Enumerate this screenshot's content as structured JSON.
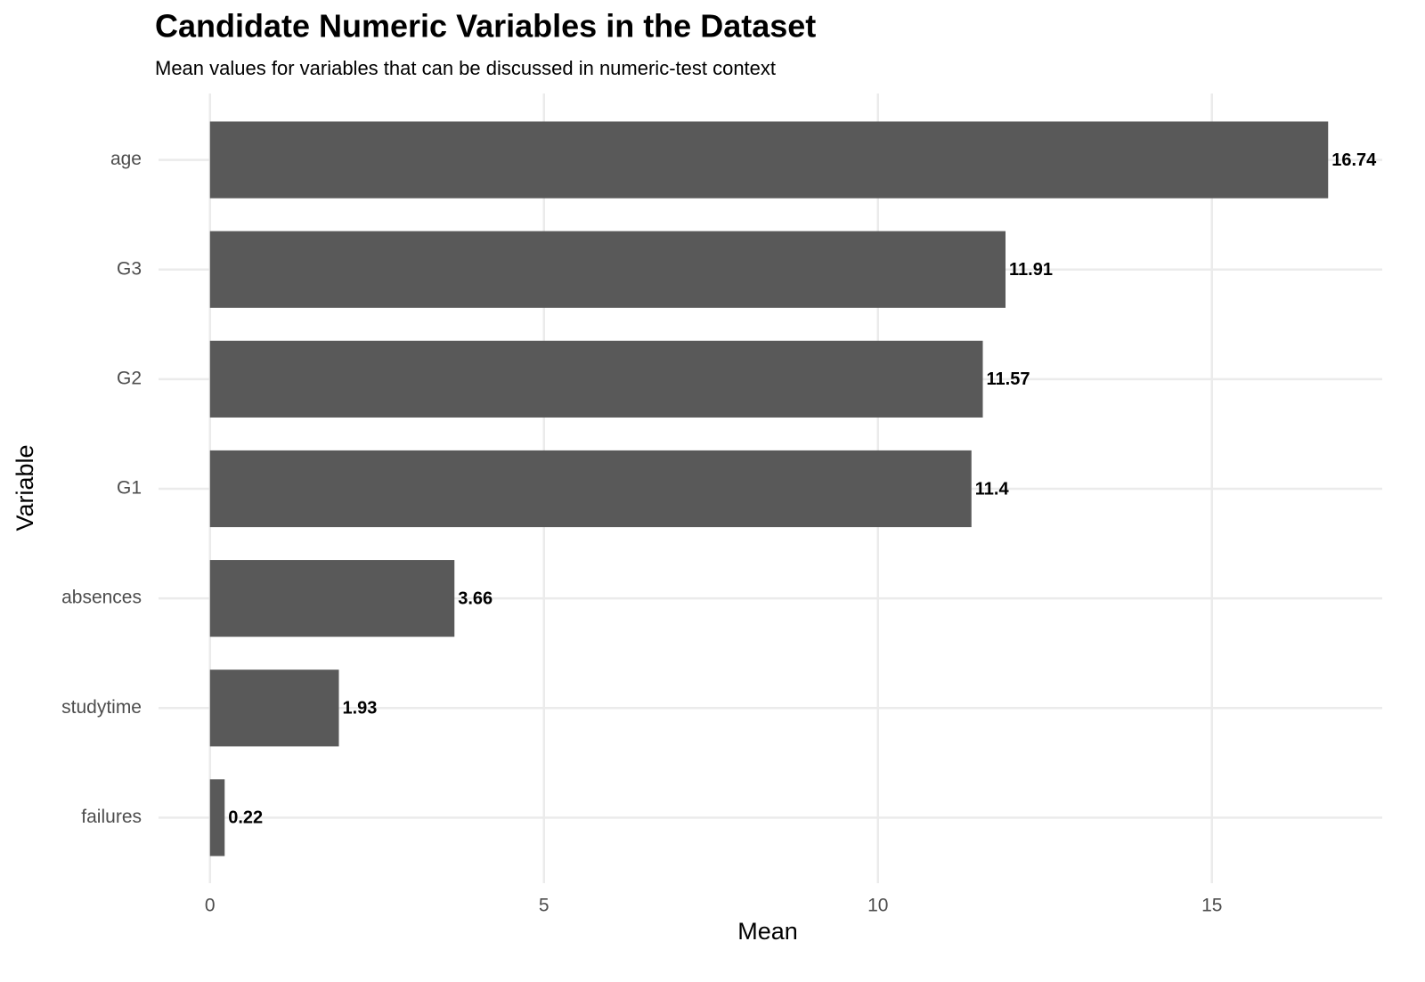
{
  "chart_data": {
    "type": "bar",
    "orientation": "horizontal",
    "title": "Candidate Numeric Variables in the Dataset",
    "subtitle": "Mean values for variables that can be discussed in numeric-test context",
    "x_label": "Mean",
    "y_label": "Variable",
    "categories": [
      "age",
      "G3",
      "G2",
      "G1",
      "absences",
      "studytime",
      "failures"
    ],
    "values": [
      16.74,
      11.91,
      11.57,
      11.4,
      3.66,
      1.93,
      0.22
    ],
    "color": "#595959",
    "xlim": [
      -0.77,
      17.55
    ],
    "xticks": [
      0,
      5,
      10,
      15
    ],
    "grid": true
  }
}
